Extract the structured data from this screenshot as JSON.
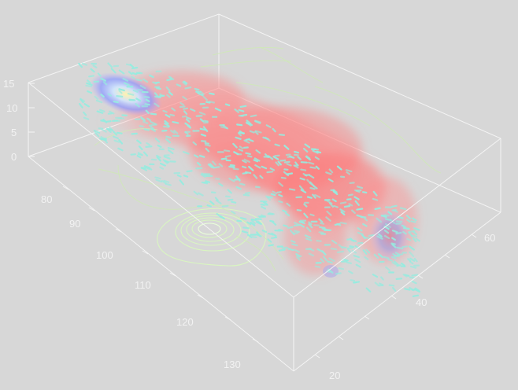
{
  "scene": {
    "view": "3d-volume-visualization",
    "icon": "cube-visualization-icon",
    "colors": {
      "background": "#d7d7d7",
      "box_edges": "#f4f4f4",
      "tick_labels": "#f2f2f2",
      "vectors": "#97ece0",
      "isosurface": "#ff6b6b",
      "streamlines": "#cfe8b8",
      "contours": "#d9f6c0"
    }
  },
  "axes": {
    "z_ticks": [
      "0",
      "5",
      "10",
      "15"
    ],
    "x_ticks": [
      "80",
      "90",
      "100",
      "110",
      "120",
      "130"
    ],
    "y_ticks": [
      "20",
      "40",
      "60"
    ]
  }
}
